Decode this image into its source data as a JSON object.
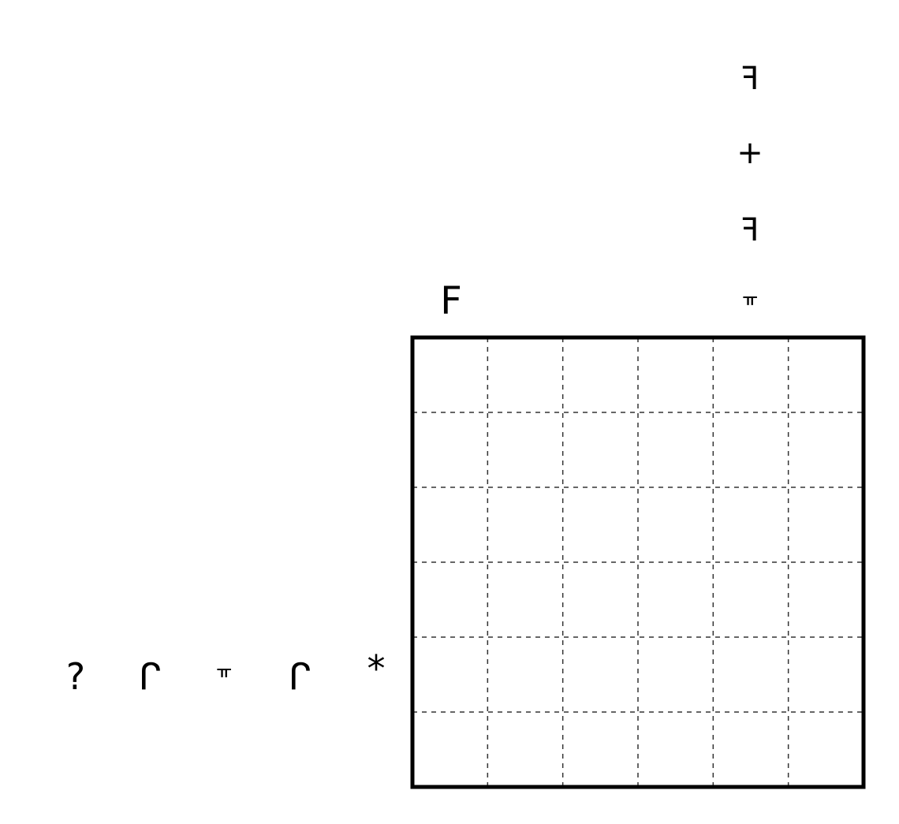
{
  "corner_label": "F",
  "column_clues": [
    "ꟻ",
    "+",
    "ꟻ",
    "ᚂ"
  ],
  "row_clues": [
    "?",
    "ᒋ",
    "ᚂ",
    "ᒋ",
    "*"
  ],
  "grid": {
    "rows": 6,
    "cols": 6
  }
}
